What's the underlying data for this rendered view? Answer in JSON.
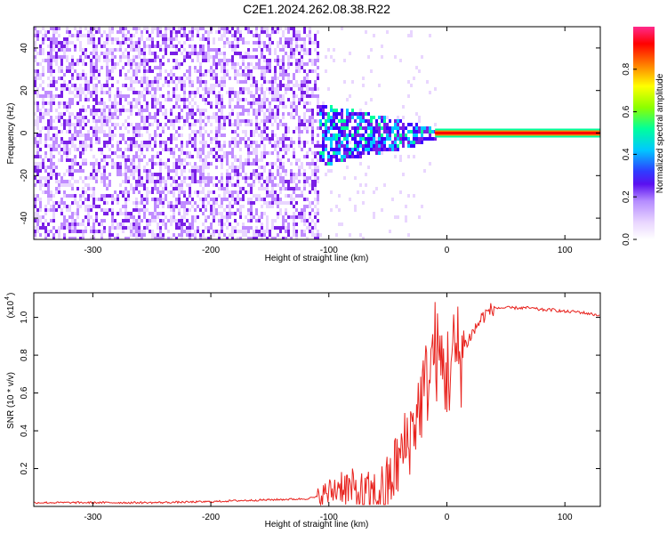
{
  "figure": {
    "title": "C2E1.2024.262.08.38.R22"
  },
  "chart_data": [
    {
      "type": "heatmap",
      "title": "C2E1.2024.262.08.38.R22",
      "xlabel": "Height of straight line (km)",
      "ylabel": "Frequency (Hz)",
      "xlim": [
        -350,
        130
      ],
      "ylim": [
        -50,
        50
      ],
      "xticks": [
        -300,
        -200,
        -100,
        0,
        100
      ],
      "yticks": [
        -40,
        -20,
        0,
        20,
        40
      ],
      "colorbar": {
        "label": "Normalized spectral amplitude",
        "range": [
          0,
          1
        ],
        "ticks": [
          0.0,
          0.2,
          0.4,
          0.6,
          0.8
        ],
        "tick_labels": [
          "0.0",
          "0.2",
          "0.4",
          "0.6",
          "0.8"
        ],
        "colormap": [
          "#ffffff",
          "#e9d6ff",
          "#c08cff",
          "#7a1fe6",
          "#3b00ff",
          "#00c8ff",
          "#00ff9c",
          "#8cff00",
          "#ffff00",
          "#ff8000",
          "#ff0000",
          "#ff2a8c"
        ]
      },
      "description_points": {
        "x_noise_region": [
          -350,
          -110
        ],
        "x_transition_region": [
          -110,
          -10
        ],
        "carrier_start_x": -10,
        "carrier_frequency": 0
      }
    },
    {
      "type": "line",
      "xlabel": "Height of straight line (km)",
      "ylabel": "SNR (10 * v/v)",
      "y_multiplier_label": "(x10",
      "y_multiplier_exp": "4",
      "xlim": [
        -350,
        130
      ],
      "ylim": [
        0,
        1.13
      ],
      "xticks": [
        -300,
        -200,
        -100,
        0,
        100
      ],
      "yticks": [
        0.2,
        0.4,
        0.6,
        0.8,
        1.0
      ],
      "series": [
        {
          "color": "#e8231e",
          "x": [
            -350,
            -300,
            -250,
            -200,
            -180,
            -150,
            -120,
            -110,
            -100,
            -95,
            -90,
            -85,
            -80,
            -75,
            -70,
            -65,
            -60,
            -55,
            -50,
            -45,
            -40,
            -35,
            -30,
            -25,
            -20,
            -15,
            -12,
            -10,
            -8,
            -5,
            0,
            5,
            10,
            15,
            20,
            25,
            30,
            35,
            40,
            50,
            60,
            70,
            80,
            90,
            100,
            110,
            120,
            130
          ],
          "y": [
            0.02,
            0.02,
            0.02,
            0.025,
            0.03,
            0.035,
            0.04,
            0.05,
            0.07,
            0.09,
            0.12,
            0.1,
            0.08,
            0.06,
            0.05,
            0.04,
            0.05,
            0.07,
            0.1,
            0.18,
            0.25,
            0.32,
            0.4,
            0.5,
            0.6,
            0.7,
            0.8,
            0.85,
            0.78,
            0.75,
            0.7,
            0.78,
            0.8,
            0.85,
            0.9,
            0.95,
            1.0,
            1.03,
            1.05,
            1.05,
            1.05,
            1.05,
            1.04,
            1.04,
            1.03,
            1.03,
            1.02,
            1.01
          ]
        }
      ]
    }
  ]
}
